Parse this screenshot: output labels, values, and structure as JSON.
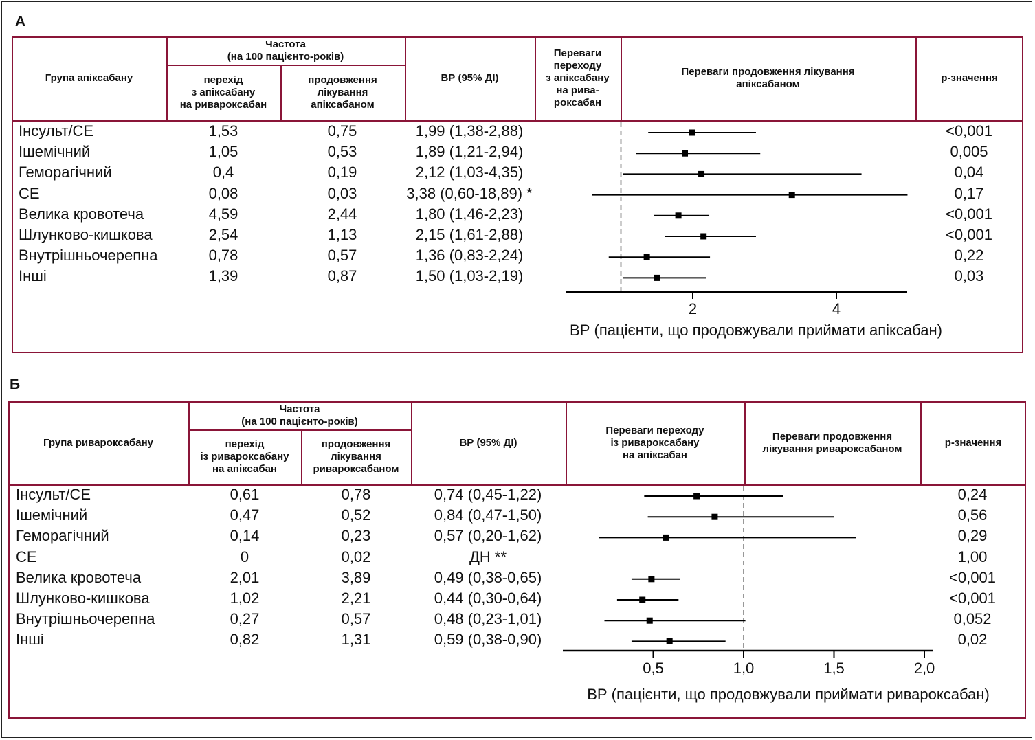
{
  "chart_data": [
    {
      "type": "forest",
      "panel_label": "А",
      "headers": {
        "group": "Група апіксабану",
        "freq": "Частота\n(на 100 пацієнто-років)",
        "switch": "перехід\nз апіксабану\nна ривароксабан",
        "continue": "продовження\nлікування\nапіксабаном",
        "hr": "ВР (95% ДІ)",
        "favors_left": "Переваги\nпереходу\nз апіксабану\nна рива-\nроксабан",
        "favors_right": "Переваги продовження лікування\nапіксабаном",
        "p": "р-значення"
      },
      "rows": [
        {
          "label": "Інсульт/СЕ",
          "switch": "1,53",
          "continue": "0,75",
          "hr_text": "1,99 (1,38-2,88)",
          "hr": 1.99,
          "lo": 1.38,
          "hi": 2.88,
          "p": "<0,001"
        },
        {
          "label": "Ішемічний",
          "switch": "1,05",
          "continue": "0,53",
          "hr_text": "1,89 (1,21-2,94)",
          "hr": 1.89,
          "lo": 1.21,
          "hi": 2.94,
          "p": "0,005"
        },
        {
          "label": "Геморагічний",
          "switch": "0,4",
          "continue": "0,19",
          "hr_text": "2,12 (1,03-4,35)",
          "hr": 2.12,
          "lo": 1.03,
          "hi": 4.35,
          "p": "0,04"
        },
        {
          "label": "СЕ",
          "switch": "0,08",
          "continue": "0,03",
          "hr_text": "3,38 (0,60-18,89) *",
          "hr": 3.38,
          "lo": 0.6,
          "hi": 18.89,
          "p": "0,17"
        },
        {
          "label": "Велика кровотеча",
          "switch": "4,59",
          "continue": "2,44",
          "hr_text": "1,80 (1,46-2,23)",
          "hr": 1.8,
          "lo": 1.46,
          "hi": 2.23,
          "p": "<0,001"
        },
        {
          "label": "Шлунково-кишкова",
          "switch": "2,54",
          "continue": "1,13",
          "hr_text": "2,15 (1,61-2,88)",
          "hr": 2.15,
          "lo": 1.61,
          "hi": 2.88,
          "p": "<0,001"
        },
        {
          "label": "Внутрішньочерепна",
          "switch": "0,78",
          "continue": "0,57",
          "hr_text": "1,36 (0,83-2,24)",
          "hr": 1.36,
          "lo": 0.83,
          "hi": 2.24,
          "p": "0,22"
        },
        {
          "label": "Інші",
          "switch": "1,39",
          "continue": "0,87",
          "hr_text": "1,50 (1,03-2,19)",
          "hr": 1.5,
          "lo": 1.03,
          "hi": 2.19,
          "p": "0,03"
        }
      ],
      "xlim": [
        0.24,
        4.99
      ],
      "reference": 1,
      "ticks": [
        {
          "v": 2,
          "label": "2"
        },
        {
          "v": 4,
          "label": "4"
        }
      ],
      "xlabel": "ВР (пацієнти, що продовжували приймати апіксабан)"
    },
    {
      "type": "forest",
      "panel_label": "Б",
      "headers": {
        "group": "Група ривароксабану",
        "freq": "Частота\n(на 100 пацієнто-років)",
        "switch": "перехід\nіз ривароксабану\nна апіксабан",
        "continue": "продовження\nлікування\nривароксабаном",
        "hr": "ВР (95% ДІ)",
        "favors_left": "Переваги переходу\nіз ривароксабану\nна апіксабан",
        "favors_right": "Переваги продовження\nлікування ривароксабаном",
        "p": "р-значення"
      },
      "rows": [
        {
          "label": "Інсульт/СЕ",
          "switch": "0,61",
          "continue": "0,78",
          "hr_text": "0,74 (0,45-1,22)",
          "hr": 0.74,
          "lo": 0.45,
          "hi": 1.22,
          "p": "0,24"
        },
        {
          "label": "Ішемічний",
          "switch": "0,47",
          "continue": "0,52",
          "hr_text": "0,84 (0,47-1,50)",
          "hr": 0.84,
          "lo": 0.47,
          "hi": 1.5,
          "p": "0,56"
        },
        {
          "label": "Геморагічний",
          "switch": "0,14",
          "continue": "0,23",
          "hr_text": "0,57 (0,20-1,62)",
          "hr": 0.57,
          "lo": 0.2,
          "hi": 1.62,
          "p": "0,29"
        },
        {
          "label": "СЕ",
          "switch": "0",
          "continue": "0,02",
          "hr_text": "ДН **",
          "hr": null,
          "lo": null,
          "hi": null,
          "p": "1,00"
        },
        {
          "label": "Велика кровотеча",
          "switch": "2,01",
          "continue": "3,89",
          "hr_text": "0,49 (0,38-0,65)",
          "hr": 0.49,
          "lo": 0.38,
          "hi": 0.65,
          "p": "<0,001"
        },
        {
          "label": "Шлунково-кишкова",
          "switch": "1,02",
          "continue": "2,21",
          "hr_text": "0,44 (0,30-0,64)",
          "hr": 0.44,
          "lo": 0.3,
          "hi": 0.64,
          "p": "<0,001"
        },
        {
          "label": "Внутрішньочерепна",
          "switch": "0,27",
          "continue": "0,57",
          "hr_text": "0,48 (0,23-1,01)",
          "hr": 0.48,
          "lo": 0.23,
          "hi": 1.01,
          "p": "0,052"
        },
        {
          "label": "Інші",
          "switch": "0,82",
          "continue": "1,31",
          "hr_text": "0,59 (0,38-0,90)",
          "hr": 0.59,
          "lo": 0.38,
          "hi": 0.9,
          "p": "0,02"
        }
      ],
      "xlim": [
        0.0,
        2.05
      ],
      "reference": 1,
      "ticks": [
        {
          "v": 0.5,
          "label": "0,5"
        },
        {
          "v": 1.0,
          "label": "1,0"
        },
        {
          "v": 1.5,
          "label": "1,5"
        },
        {
          "v": 2.0,
          "label": "2,0"
        }
      ],
      "xlabel": "ВР (пацієнти, що продовжували приймати ривароксабан)"
    }
  ],
  "colors": {
    "border": "#8a1538",
    "marks": "#000000",
    "reference": "#999999"
  }
}
